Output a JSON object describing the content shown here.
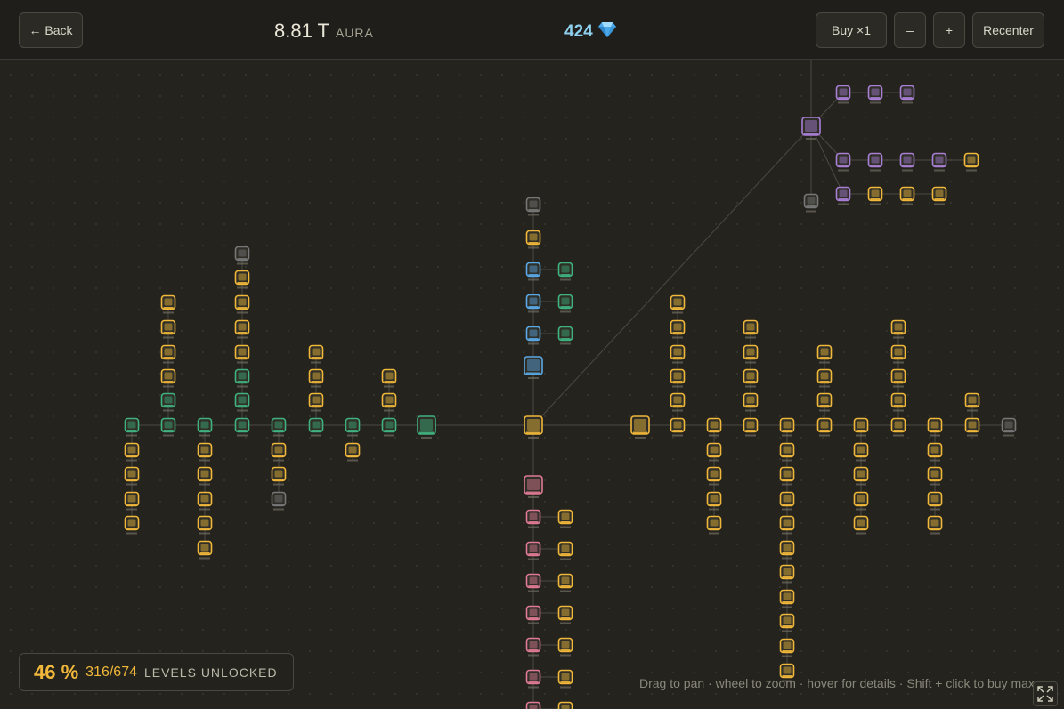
{
  "header": {
    "back_label": "← Back",
    "aura_value": "8.81 T",
    "aura_unit": "AURA",
    "gems_value": "424",
    "gem_icon": "diamond-icon",
    "buy_label": "Buy ×1",
    "zoom_out_label": "–",
    "zoom_in_label": "+",
    "recenter_label": "Recenter"
  },
  "progress": {
    "percent": "46 %",
    "count": "316/674",
    "label": "LEVELS UNLOCKED",
    "unlocked": 316,
    "total": 674
  },
  "hint": "Drag to pan · wheel to zoom · hover for details · Shift + click to buy max",
  "colors": {
    "background": "#24231e",
    "gold": "#f0b73a",
    "green": "#3fb27f",
    "blue": "#5aa9e6",
    "pink": "#e07a95",
    "purple": "#a97fd6",
    "locked": "#777777",
    "gem": "#8fd0ef"
  }
}
